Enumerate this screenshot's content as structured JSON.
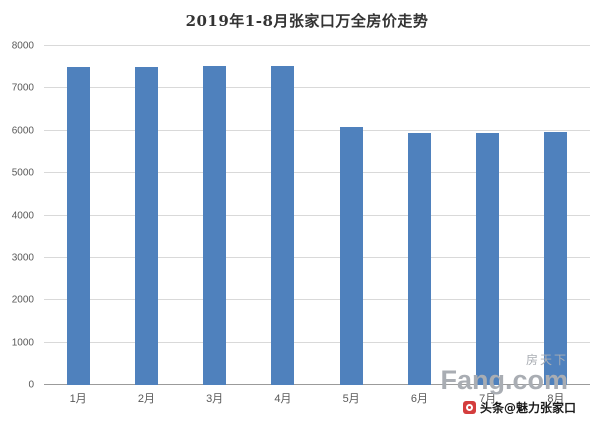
{
  "chart_data": {
    "type": "bar",
    "title": "2019年1-8月张家口万全房价走势",
    "categories": [
      "1月",
      "2月",
      "3月",
      "4月",
      "5月",
      "6月",
      "7月",
      "8月"
    ],
    "values": [
      7500,
      7500,
      7520,
      7520,
      6080,
      5950,
      5950,
      5980
    ],
    "xlabel": "",
    "ylabel": "",
    "ylim": [
      0,
      8000
    ],
    "ytick_interval": 1000,
    "grid": true,
    "legend": false,
    "bar_color": "#4f81bd",
    "gridline_color": "#d9d9d9",
    "axis_text_color": "#595959"
  },
  "watermarks": {
    "fang": {
      "cn": "房天下",
      "brand": "Fang.com"
    },
    "toutiao": {
      "label": "头条@魅力张家口"
    }
  }
}
